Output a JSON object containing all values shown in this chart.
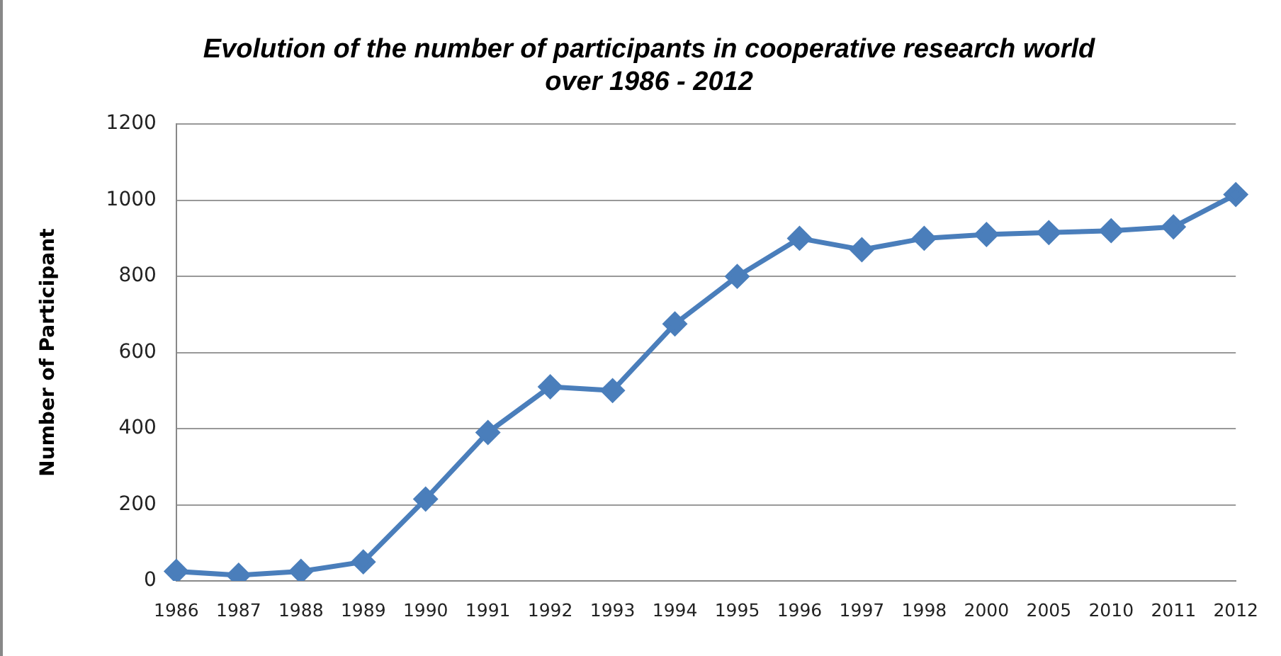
{
  "chart_data": {
    "type": "line",
    "title": [
      "Evolution of the number of participants in cooperative research world",
      "over 1986 - 2012"
    ],
    "ylabel": "Number of Participant",
    "categories": [
      "1986",
      "1987",
      "1988",
      "1989",
      "1990",
      "1991",
      "1992",
      "1993",
      "1994",
      "1995",
      "1996",
      "1997",
      "1998",
      "2000",
      "2005",
      "2010",
      "2011",
      "2012"
    ],
    "series": [
      {
        "color": "#4a7ebb",
        "values": [
          25,
          15,
          25,
          50,
          215,
          390,
          510,
          500,
          675,
          800,
          900,
          870,
          900,
          910,
          915,
          920,
          930,
          1015
        ]
      }
    ],
    "ylim": [
      0,
      1200
    ],
    "yticks": [
      0,
      200,
      400,
      600,
      800,
      1000,
      1200
    ],
    "grid": "y",
    "legend": false,
    "marker": "diamond",
    "line_style": "solid"
  }
}
